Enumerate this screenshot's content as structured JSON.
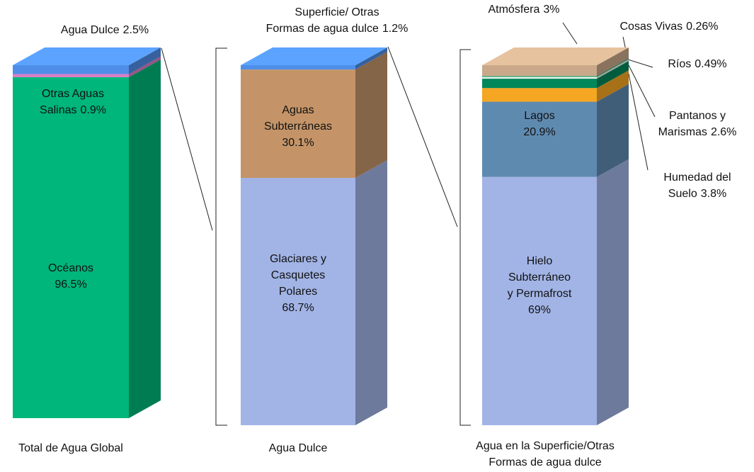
{
  "chart_data": [
    {
      "type": "stacked_bar_3d",
      "title": "Total de Agua Global",
      "categories": [
        "Océanos",
        "Otras Aguas\nSalinas",
        "Agua Dulce"
      ],
      "values": [
        96.5,
        0.9,
        2.5
      ],
      "value_labels": [
        "96.5%",
        "0.9%",
        "2.5%"
      ],
      "colors": [
        "#00b67a",
        "#d77fc4",
        "#4f8ee8"
      ]
    },
    {
      "type": "stacked_bar_3d",
      "title": "Agua Dulce",
      "categories": [
        "Glaciares y\nCasquetes\nPolares",
        "Aguas\nSubterráneas",
        "Superficie/ Otras\nFormas de agua dulce"
      ],
      "values": [
        68.7,
        30.1,
        1.2
      ],
      "value_labels": [
        "68.7%",
        "30.1%",
        "1.2%"
      ],
      "colors": [
        "#a2b4e6",
        "#c49468",
        "#4f8ee8"
      ]
    },
    {
      "type": "stacked_bar_3d",
      "title": "Agua en la Superficie/Otras\nFormas de agua dulce",
      "categories": [
        "Hielo\nSubterráneo\ny Permafrost",
        "Lagos",
        "Humedad del\nSuelo",
        "Pantanos y\nMarismas",
        "Ríos",
        "Cosas Vivas",
        "Atmósfera"
      ],
      "values": [
        69,
        20.9,
        3.8,
        2.6,
        0.49,
        0.26,
        3
      ],
      "value_labels": [
        "69%",
        "20.9%",
        "3.8%",
        "2.6%",
        "0.49%",
        "0.26%",
        "3%"
      ],
      "colors": [
        "#a2b4e6",
        "#5f8ab0",
        "#f5a623",
        "#00875a",
        "#e8f4ee",
        "#1a9a5e",
        "#c9a98a"
      ]
    }
  ]
}
